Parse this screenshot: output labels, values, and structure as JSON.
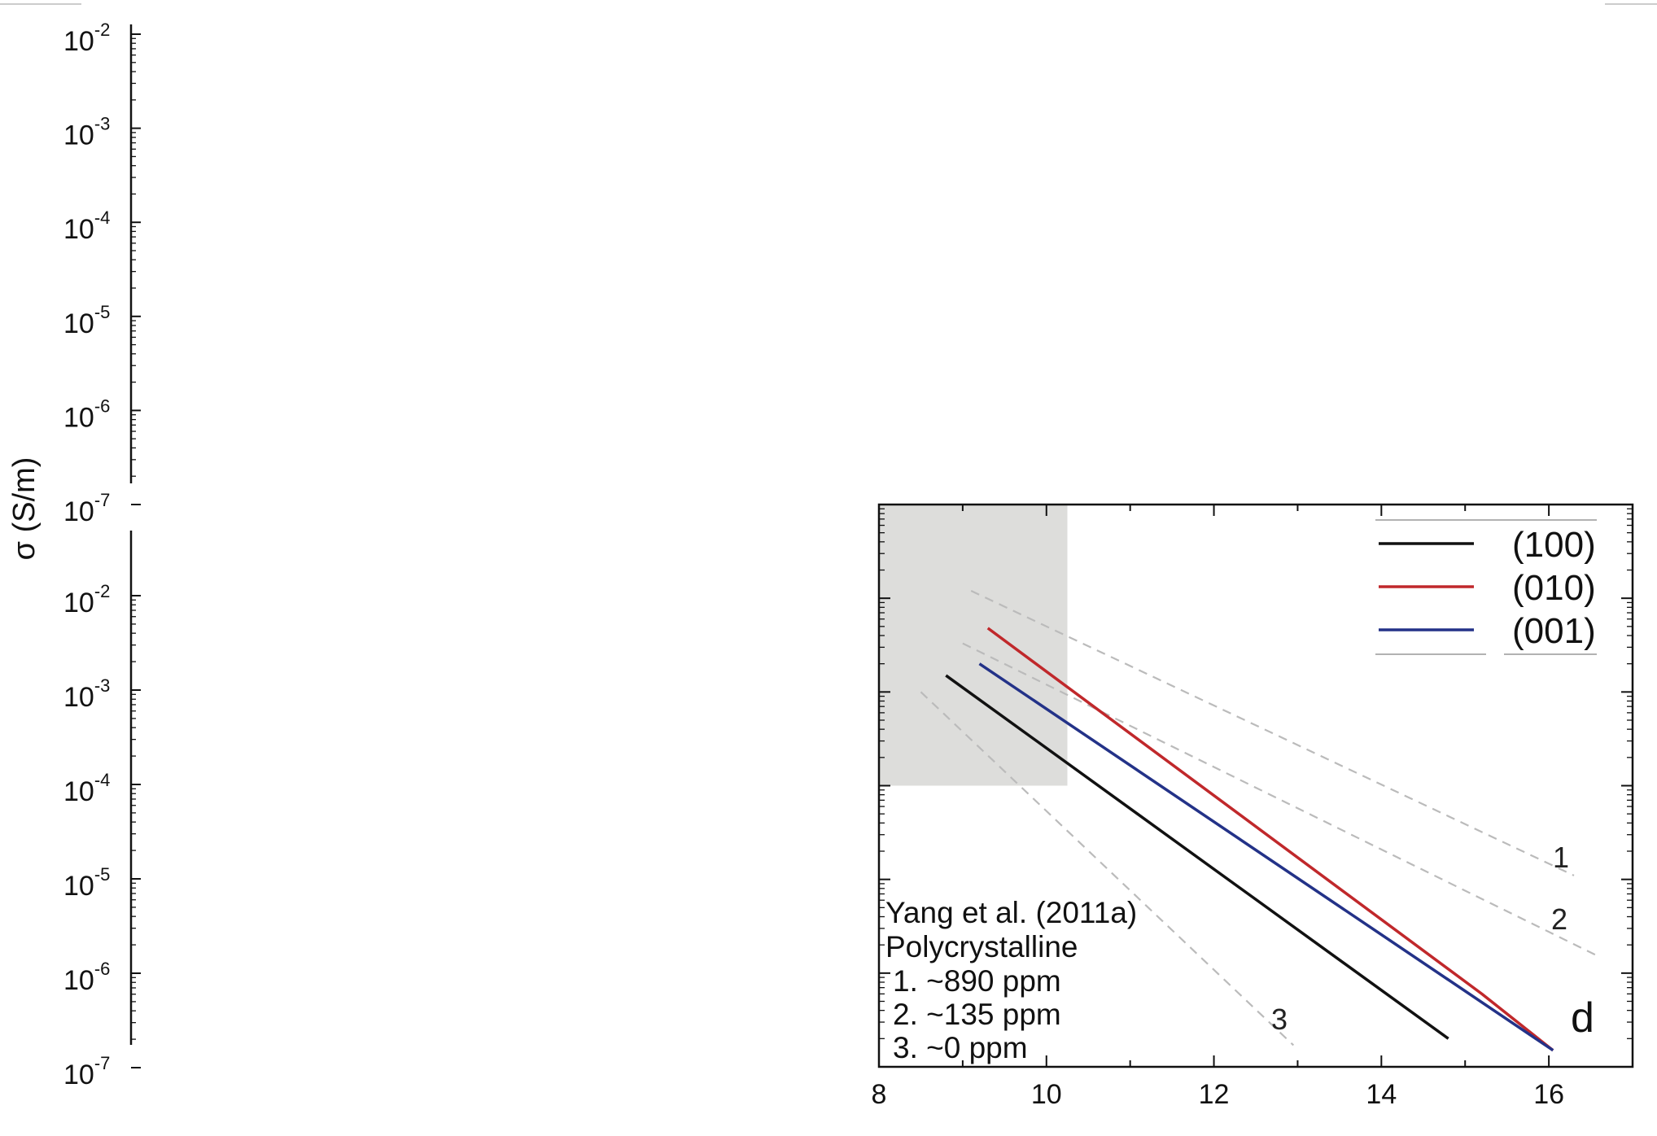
{
  "chart_data": [
    {
      "type": "line",
      "panel": "left-upper",
      "ylabel": "σ (S/m)",
      "yscale": "log",
      "ylim": [
        1e-07,
        0.01
      ],
      "yticks": [
        {
          "base": "10",
          "exp": "-2"
        },
        {
          "base": "10",
          "exp": "-3"
        },
        {
          "base": "10",
          "exp": "-4"
        },
        {
          "base": "10",
          "exp": "-5"
        },
        {
          "base": "10",
          "exp": "-6"
        },
        {
          "base": "10",
          "exp": "-7"
        }
      ],
      "series": []
    },
    {
      "type": "line",
      "panel": "left-lower",
      "yscale": "log",
      "ylim": [
        1e-07,
        0.01
      ],
      "yticks": [
        {
          "base": "10",
          "exp": "-2"
        },
        {
          "base": "10",
          "exp": "-3"
        },
        {
          "base": "10",
          "exp": "-4"
        },
        {
          "base": "10",
          "exp": "-5"
        },
        {
          "base": "10",
          "exp": "-6"
        },
        {
          "base": "10",
          "exp": "-7"
        }
      ],
      "series": []
    },
    {
      "type": "line",
      "panel": "d",
      "panel_letter": "d",
      "xlim": [
        8,
        17
      ],
      "xticks": [
        "8",
        "10",
        "12",
        "14",
        "16"
      ],
      "yscale": "log",
      "ylim": [
        1e-07,
        0.1
      ],
      "shaded_region": {
        "x": [
          8,
          10.25
        ],
        "y": [
          0.0001,
          0.1
        ],
        "color": "#dddddb"
      },
      "series": [
        {
          "name": "(100)",
          "color": "#111111",
          "x": [
            8.8,
            14.8
          ],
          "y": [
            0.0015,
            2e-07
          ]
        },
        {
          "name": "(010)",
          "color": "#c0282b",
          "x": [
            9.3,
            15.2,
            16.05
          ],
          "y": [
            0.0048,
            6e-07,
            1.5e-07
          ]
        },
        {
          "name": "(001)",
          "color": "#233288",
          "x": [
            9.2,
            16.05
          ],
          "y": [
            0.002,
            1.5e-07
          ]
        }
      ],
      "reference_lines": [
        {
          "label": "1",
          "color": "#bbbbbb",
          "x": [
            9.1,
            16.3
          ],
          "y": [
            0.012,
            1.1e-05
          ]
        },
        {
          "label": "2",
          "color": "#bbbbbb",
          "x": [
            9.0,
            16.6
          ],
          "y": [
            0.0033,
            1.5e-06
          ]
        },
        {
          "label": "3",
          "color": "#bbbbbb",
          "x": [
            8.5,
            12.95
          ],
          "y": [
            0.001,
            1.7e-07
          ]
        }
      ],
      "annotation": [
        "Yang et al. (2011a)",
        "Polycrystalline",
        "1. ~890 ppm",
        "2. ~135 ppm",
        "3. ~0 ppm"
      ]
    }
  ]
}
